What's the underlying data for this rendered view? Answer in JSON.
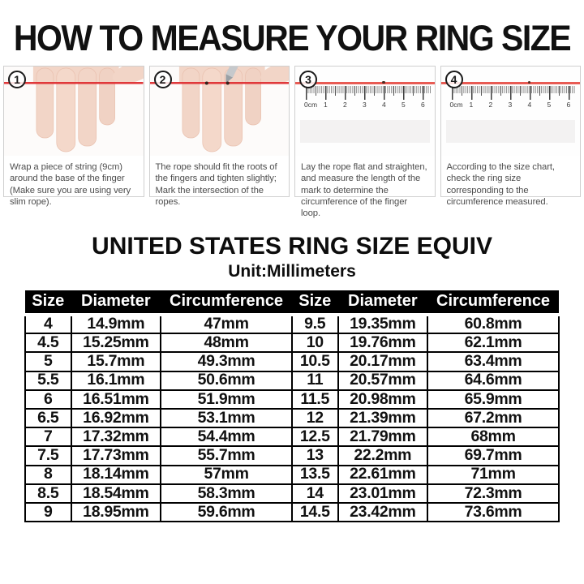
{
  "page": {
    "title": "HOW TO MEASURE YOUR RING SIZE"
  },
  "steps": [
    {
      "number": "1",
      "caption": "Wrap a piece of string (9cm) around the base of the finger (Make sure you are using very slim rope)."
    },
    {
      "number": "2",
      "caption": "The rope should fit the roots of the fingers and tighten slightly; Mark the intersection of the ropes."
    },
    {
      "number": "3",
      "caption": "Lay the rope flat and straighten, and measure the length of the mark to determine the circumference of the finger loop."
    },
    {
      "number": "4",
      "caption": "According to the size chart, check the ring size corresponding to the circumference measured."
    }
  ],
  "ruler": {
    "labels": [
      "0cm",
      "1",
      "2",
      "3",
      "4",
      "5",
      "6"
    ]
  },
  "size_chart": {
    "title": "UNITED STATES RING SIZE EQUIV",
    "unit": "Unit:Millimeters",
    "headers": [
      "Size",
      "Diameter",
      "Circumference",
      "Size",
      "Diameter",
      "Circumference"
    ],
    "rows": [
      [
        "4",
        "14.9mm",
        "47mm",
        "9.5",
        "19.35mm",
        "60.8mm"
      ],
      [
        "4.5",
        "15.25mm",
        "48mm",
        "10",
        "19.76mm",
        "62.1mm"
      ],
      [
        "5",
        "15.7mm",
        "49.3mm",
        "10.5",
        "20.17mm",
        "63.4mm"
      ],
      [
        "5.5",
        "16.1mm",
        "50.6mm",
        "11",
        "20.57mm",
        "64.6mm"
      ],
      [
        "6",
        "16.51mm",
        "51.9mm",
        "11.5",
        "20.98mm",
        "65.9mm"
      ],
      [
        "6.5",
        "16.92mm",
        "53.1mm",
        "12",
        "21.39mm",
        "67.2mm"
      ],
      [
        "7",
        "17.32mm",
        "54.4mm",
        "12.5",
        "21.79mm",
        "68mm"
      ],
      [
        "7.5",
        "17.73mm",
        "55.7mm",
        "13",
        "22.2mm",
        "69.7mm"
      ],
      [
        "8",
        "18.14mm",
        "57mm",
        "13.5",
        "22.61mm",
        "71mm"
      ],
      [
        "8.5",
        "18.54mm",
        "58.3mm",
        "14",
        "23.01mm",
        "72.3mm"
      ],
      [
        "9",
        "18.95mm",
        "59.6mm",
        "14.5",
        "23.42mm",
        "73.6mm"
      ]
    ]
  },
  "colors": {
    "string_red": "#e85b54",
    "header_bg": "#000000",
    "header_text": "#ffffff"
  }
}
